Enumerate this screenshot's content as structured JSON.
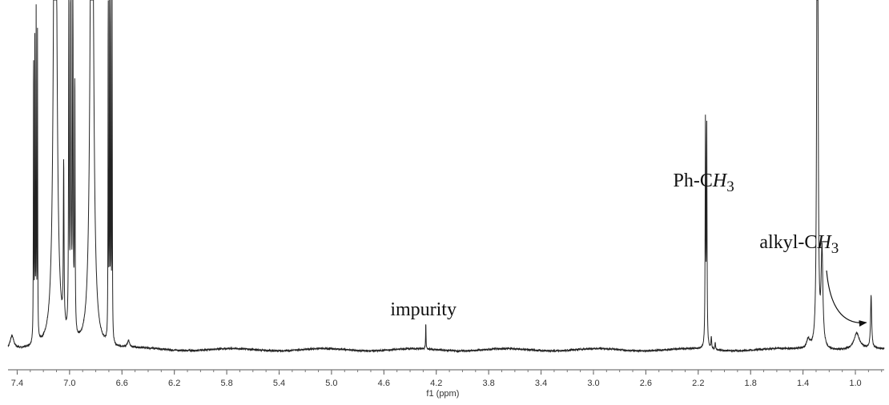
{
  "chart_data": {
    "type": "line",
    "xlabel": "f1 (ppm)",
    "x_reversed": true,
    "xlim": [
      7.47,
      0.78
    ],
    "ylim": [
      0,
      100
    ],
    "grid": false,
    "ticks": [
      "7.4",
      "7.0",
      "6.6",
      "6.2",
      "5.8",
      "5.4",
      "5.0",
      "4.6",
      "4.2",
      "3.8",
      "3.4",
      "3.0",
      "2.6",
      "2.2",
      "1.8",
      "1.4",
      "1.0"
    ],
    "tick_values": [
      7.4,
      7.0,
      6.6,
      6.2,
      5.8,
      5.4,
      5.0,
      4.6,
      4.2,
      3.8,
      3.4,
      3.0,
      2.6,
      2.2,
      1.8,
      1.4,
      1.0
    ],
    "baseline": 4,
    "peaks": [
      {
        "x": 7.44,
        "h": 3.0,
        "w": 0.018
      },
      {
        "x": 7.275,
        "h": 67,
        "w": 0.0016
      },
      {
        "x": 7.265,
        "h": 69,
        "w": 0.0016
      },
      {
        "x": 7.255,
        "h": 71,
        "w": 0.0016
      },
      {
        "x": 7.245,
        "h": 67,
        "w": 0.0016
      },
      {
        "x": 7.11,
        "h": 160,
        "w": 0.012
      },
      {
        "x": 7.045,
        "h": 36,
        "w": 0.003
      },
      {
        "x": 7.005,
        "h": 87,
        "w": 0.0025
      },
      {
        "x": 6.99,
        "h": 90,
        "w": 0.0025
      },
      {
        "x": 6.975,
        "h": 87,
        "w": 0.0025
      },
      {
        "x": 6.96,
        "h": 56,
        "w": 0.0025
      },
      {
        "x": 6.83,
        "h": 160,
        "w": 0.012
      },
      {
        "x": 6.705,
        "h": 79,
        "w": 0.0016
      },
      {
        "x": 6.695,
        "h": 81,
        "w": 0.0016
      },
      {
        "x": 6.685,
        "h": 83,
        "w": 0.0016
      },
      {
        "x": 6.675,
        "h": 79,
        "w": 0.0016
      },
      {
        "x": 6.55,
        "h": 1.5,
        "w": 0.01
      },
      {
        "x": 4.28,
        "h": 6.0,
        "w": 0.0018
      },
      {
        "x": 2.145,
        "h": 48.5,
        "w": 0.0025
      },
      {
        "x": 2.135,
        "h": 48,
        "w": 0.0025
      },
      {
        "x": 2.1,
        "h": 2.5,
        "w": 0.003
      },
      {
        "x": 2.07,
        "h": 1.5,
        "w": 0.003
      },
      {
        "x": 1.36,
        "h": 2.0,
        "w": 0.015
      },
      {
        "x": 1.29,
        "h": 200,
        "w": 0.004
      },
      {
        "x": 1.255,
        "h": 21,
        "w": 0.008
      },
      {
        "x": 0.99,
        "h": 3.5,
        "w": 0.025
      },
      {
        "x": 0.88,
        "h": 11.5,
        "w": 0.005
      }
    ],
    "annotations": {
      "impurity": {
        "text": "impurity",
        "x": 4.28
      },
      "ph_ch3": {
        "prefix": "Ph-C",
        "H": "H",
        "sub": "3",
        "x": 2.14
      },
      "alkyl_ch3": {
        "prefix": "alkyl-C",
        "H": "H",
        "sub": "3",
        "x": 0.88
      }
    }
  }
}
